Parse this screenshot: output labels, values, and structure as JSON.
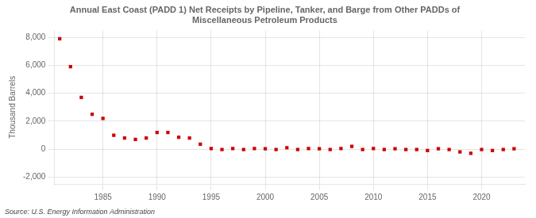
{
  "chart_data": {
    "type": "scatter",
    "title": "Annual East Coast (PADD 1) Net Receipts by Pipeline, Tanker, and Barge from Other PADDs of\nMiscellaneous Petroleum Products",
    "ylabel": "Thousand Barrels",
    "annotations": [
      "Source: U.S. Energy Information Administration"
    ],
    "x": [
      1981,
      1982,
      1983,
      1984,
      1985,
      1986,
      1987,
      1988,
      1989,
      1990,
      1991,
      1992,
      1993,
      1994,
      1995,
      1996,
      1997,
      1998,
      1999,
      2000,
      2001,
      2002,
      2003,
      2004,
      2005,
      2006,
      2007,
      2008,
      2009,
      2010,
      2011,
      2012,
      2013,
      2014,
      2015,
      2016,
      2017,
      2018,
      2019,
      2020,
      2021,
      2022,
      2023
    ],
    "values": [
      7900,
      5900,
      3700,
      2500,
      2200,
      1000,
      800,
      700,
      800,
      1200,
      1200,
      850,
      800,
      350,
      50,
      -30,
      50,
      -20,
      50,
      30,
      -20,
      100,
      -30,
      50,
      30,
      -30,
      50,
      200,
      -20,
      50,
      -30,
      30,
      -30,
      -30,
      -100,
      30,
      -30,
      -200,
      -300,
      -30,
      -100,
      -30,
      30
    ],
    "color": "#cc0000",
    "marker": "square",
    "xlim": [
      1980.5,
      2024
    ],
    "xticks": [
      1985,
      1990,
      1995,
      2000,
      2005,
      2010,
      2015,
      2020
    ],
    "ylim": [
      -2500,
      8500
    ],
    "yticks": [
      {
        "value": -2000,
        "label": "-2,000"
      },
      0,
      {
        "value": 2000,
        "label": "2,000"
      },
      {
        "value": 4000,
        "label": "4,000"
      },
      {
        "value": 6000,
        "label": "6,000"
      },
      {
        "value": 8000,
        "label": "8,000"
      }
    ],
    "grid": true
  }
}
